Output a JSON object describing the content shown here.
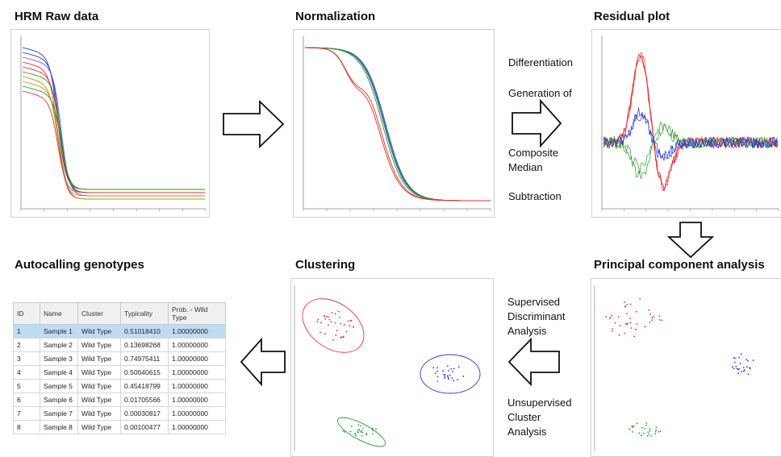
{
  "titles": {
    "raw": "HRM Raw data",
    "norm": "Normalization",
    "residual": "Residual plot",
    "auto": "Autocalling genotypes",
    "cluster": "Clustering",
    "pca": "Principal component analysis"
  },
  "residual_steps": [
    "Differentiation",
    "Generation of",
    "Composite",
    "Median",
    "Subtraction"
  ],
  "analysis_steps": {
    "supervised": [
      "Supervised",
      "Discriminant",
      "Analysis"
    ],
    "unsupervised": [
      "Unsupervised",
      "Cluster",
      "Analysis"
    ]
  },
  "genotype_table": {
    "headers": [
      "ID",
      "Name",
      "Cluster",
      "Typicality",
      "Prob. - Wild Type"
    ],
    "rows": [
      [
        "1",
        "Sample 1",
        "Wild Type",
        "0.51018410",
        "1.00000000"
      ],
      [
        "2",
        "Sample 2",
        "Wild Type",
        "0.13698268",
        "1.00000000"
      ],
      [
        "3",
        "Sample 3",
        "Wild Type",
        "0.74975411",
        "1.00000000"
      ],
      [
        "4",
        "Sample 4",
        "Wild Type",
        "0.50040615",
        "1.00000000"
      ],
      [
        "5",
        "Sample 5",
        "Wild Type",
        "0.45418799",
        "1.00000000"
      ],
      [
        "6",
        "Sample 6",
        "Wild Type",
        "0.01705566",
        "1.00000000"
      ],
      [
        "7",
        "Sample 7",
        "Wild Type",
        "0.00030817",
        "1.00000000"
      ],
      [
        "8",
        "Sample 8",
        "Wild Type",
        "0.00100477",
        "1.00000000"
      ]
    ],
    "selected_row": 0
  },
  "colors": {
    "red": "#e03030",
    "green": "#2a9a2a",
    "blue": "#2a3ad0",
    "arrow": "#111111",
    "selection": "#bfdcf5"
  }
}
